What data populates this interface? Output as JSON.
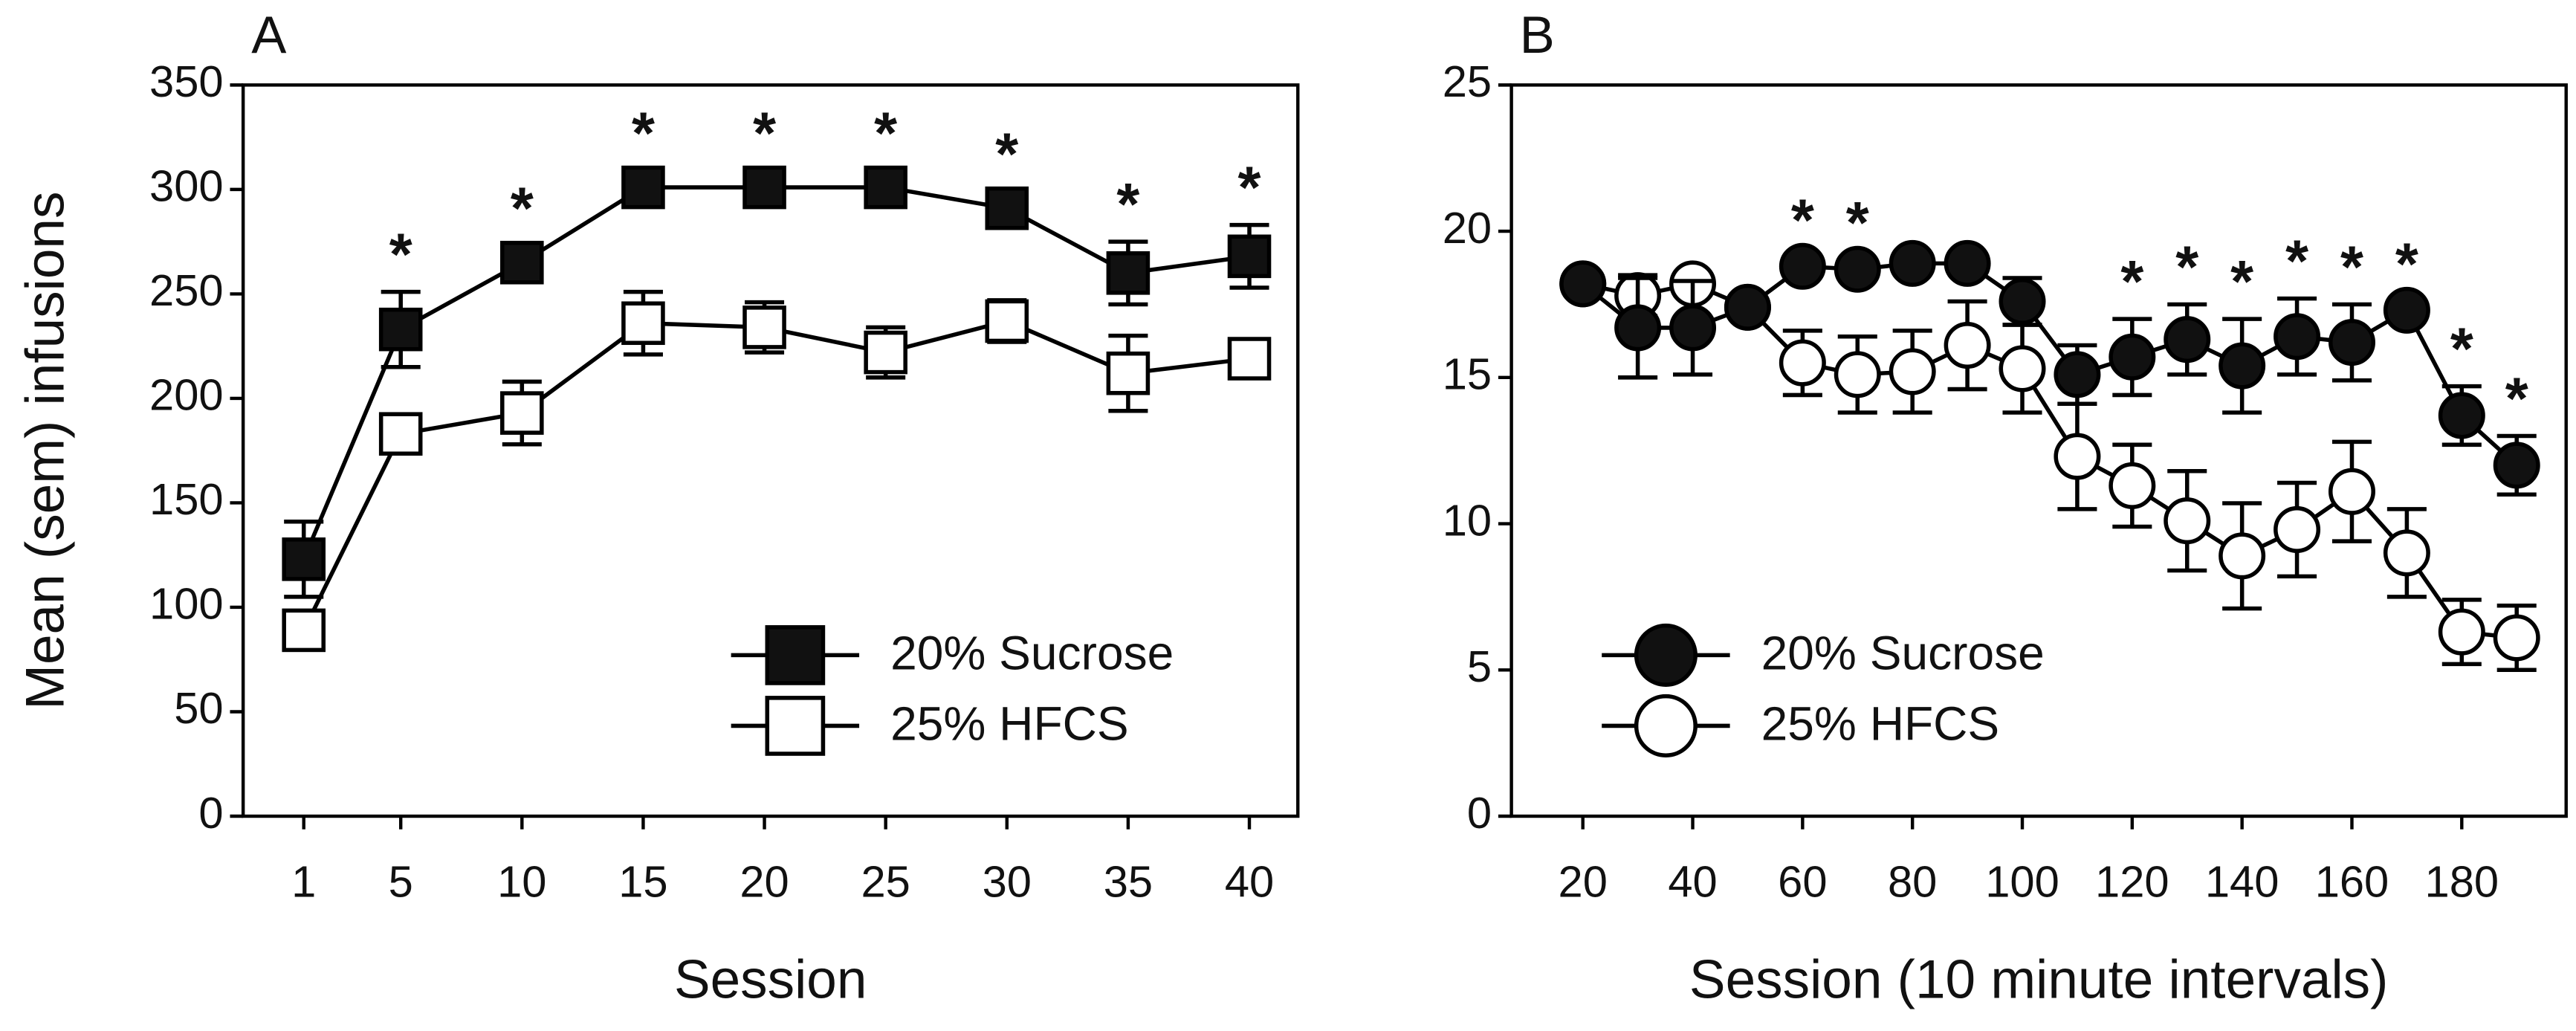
{
  "chart_data": [
    {
      "type": "line",
      "panel_label": "A",
      "ylabel": "Mean (sem) infusions",
      "xlabel": "Session",
      "x": [
        1,
        5,
        10,
        15,
        20,
        25,
        30,
        35,
        40
      ],
      "xlim": [
        -1.5,
        42
      ],
      "xticks": [
        1,
        5,
        10,
        15,
        20,
        25,
        30,
        35,
        40
      ],
      "ylim": [
        0,
        350
      ],
      "yticks": [
        0,
        50,
        100,
        150,
        200,
        250,
        300,
        350
      ],
      "legend": "lower right",
      "series": [
        {
          "name": "20% Sucrose",
          "marker": "square",
          "color": "#000000",
          "fill": "#111111",
          "values": [
            123,
            233,
            265,
            301,
            301,
            301,
            291,
            260,
            268
          ],
          "errors": [
            18,
            18,
            8,
            8,
            8,
            8,
            8,
            15,
            15
          ]
        },
        {
          "name": "25% HFCS",
          "marker": "square",
          "color": "#000000",
          "fill": "#ffffff",
          "values": [
            89,
            183,
            193,
            236,
            234,
            222,
            237,
            212,
            219
          ],
          "errors": [
            8,
            8,
            15,
            15,
            12,
            12,
            10,
            18,
            8
          ]
        }
      ],
      "annotations": [
        {
          "x": 5,
          "text": "*"
        },
        {
          "x": 10,
          "text": "*"
        },
        {
          "x": 15,
          "text": "*"
        },
        {
          "x": 20,
          "text": "*"
        },
        {
          "x": 25,
          "text": "*"
        },
        {
          "x": 30,
          "text": "*"
        },
        {
          "x": 35,
          "text": "*"
        },
        {
          "x": 40,
          "text": "*"
        }
      ]
    },
    {
      "type": "line",
      "panel_label": "B",
      "xlabel": "Session (10 minute intervals)",
      "x": [
        20,
        30,
        40,
        50,
        60,
        70,
        80,
        90,
        100,
        110,
        120,
        130,
        140,
        150,
        160,
        170,
        180,
        190
      ],
      "xlim": [
        7,
        199
      ],
      "xticks": [
        20,
        40,
        60,
        80,
        100,
        120,
        140,
        160,
        180
      ],
      "ylim": [
        0,
        25
      ],
      "yticks": [
        0,
        5,
        10,
        15,
        20,
        25
      ],
      "legend": "lower left",
      "series": [
        {
          "name": "20% Sucrose",
          "marker": "circle",
          "color": "#000000",
          "fill": "#111111",
          "values": [
            18.2,
            16.7,
            16.7,
            17.4,
            18.8,
            18.7,
            18.9,
            18.9,
            17.6,
            15.1,
            15.7,
            16.3,
            15.4,
            16.4,
            16.2,
            17.3,
            13.7,
            12
          ],
          "errors": [
            0.3,
            1.7,
            1.6,
            0.3,
            0.3,
            0.3,
            0.3,
            0.3,
            0.8,
            1,
            1.3,
            1.2,
            1.6,
            1.3,
            1.3,
            0.3,
            1,
            1
          ]
        },
        {
          "name": "25% HFCS",
          "marker": "circle",
          "color": "#000000",
          "fill": "#ffffff",
          "values": [
            18.2,
            17.8,
            18.2,
            17.4,
            15.5,
            15.1,
            15.2,
            16.1,
            15.3,
            12.3,
            11.3,
            10.1,
            8.9,
            9.8,
            11.1,
            9,
            6.3,
            6.1
          ],
          "errors": [
            0.3,
            0.7,
            0.3,
            0.3,
            1.1,
            1.3,
            1.4,
            1.5,
            1.5,
            1.8,
            1.4,
            1.7,
            1.8,
            1.6,
            1.7,
            1.5,
            1.1,
            1.1
          ]
        }
      ],
      "annotations": [
        {
          "x": 60,
          "text": "*"
        },
        {
          "x": 70,
          "text": "*"
        },
        {
          "x": 120,
          "text": "*"
        },
        {
          "x": 130,
          "text": "*"
        },
        {
          "x": 140,
          "text": "*"
        },
        {
          "x": 150,
          "text": "*"
        },
        {
          "x": 160,
          "text": "*"
        },
        {
          "x": 170,
          "text": "*"
        },
        {
          "x": 180,
          "text": "*"
        },
        {
          "x": 190,
          "text": "*"
        }
      ]
    }
  ]
}
